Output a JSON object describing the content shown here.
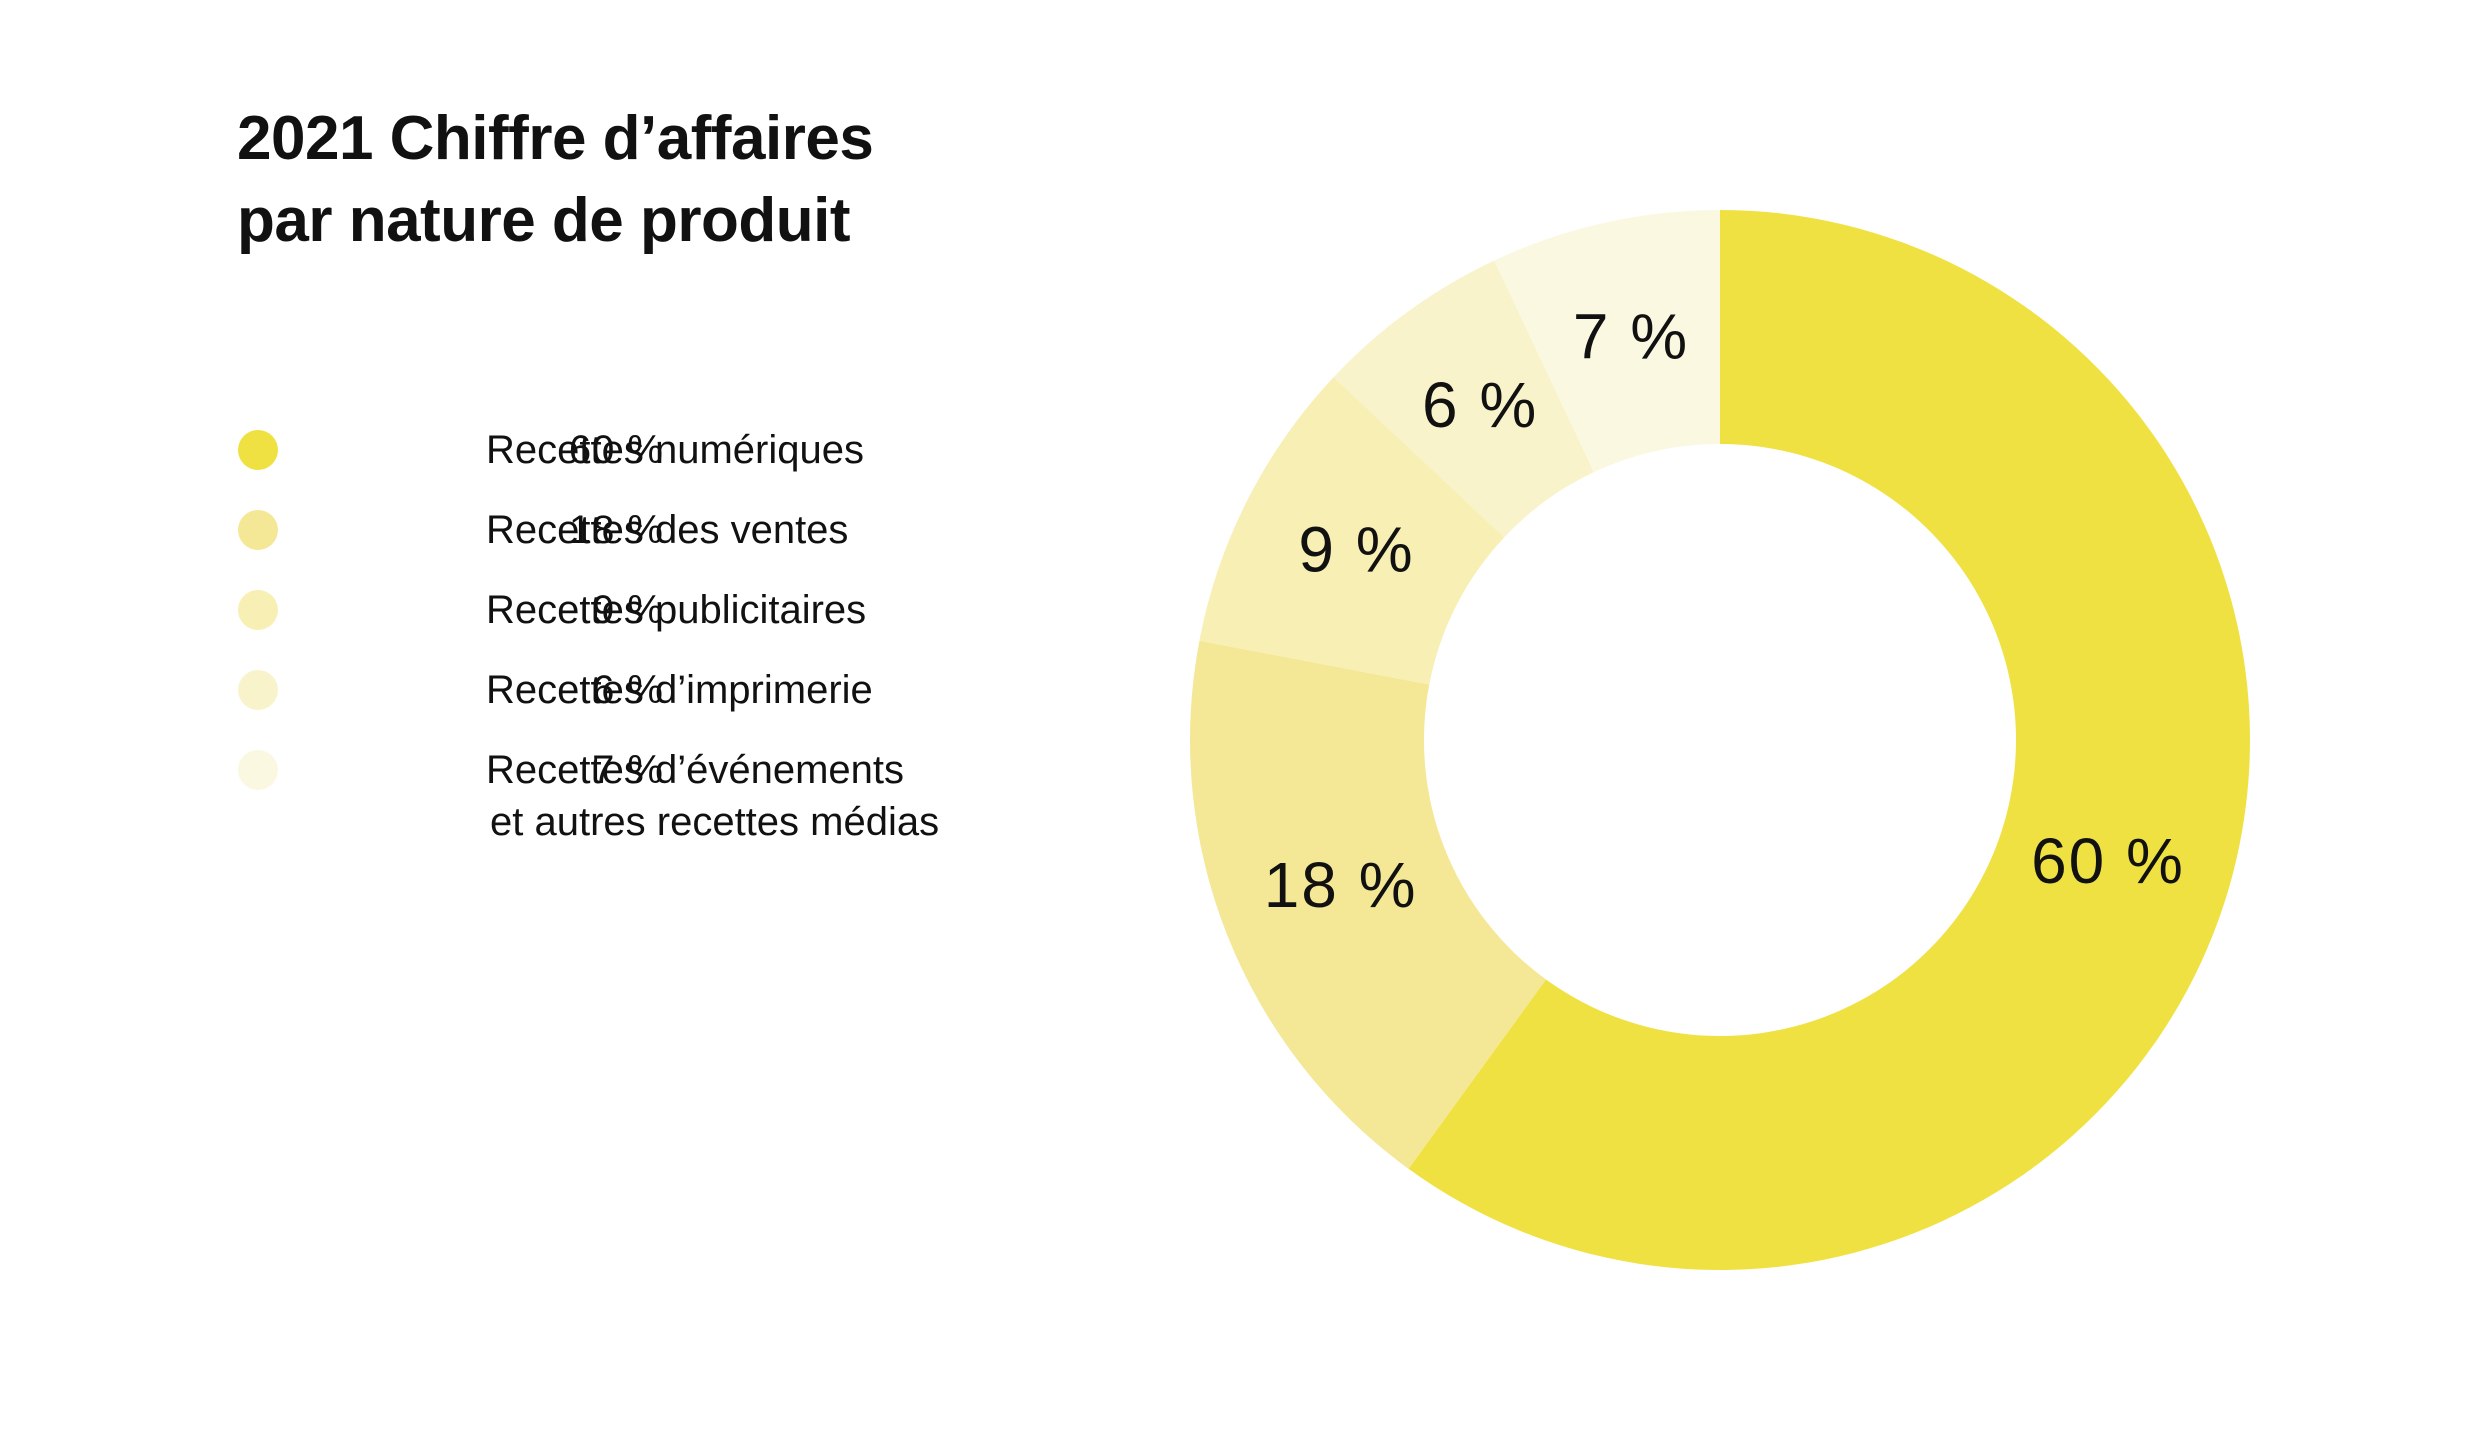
{
  "title": {
    "line1": "2021 Chiffre d’affaires",
    "line2": "par nature de produit"
  },
  "chart_data": {
    "type": "pie",
    "donut": true,
    "start": "top, clockwise",
    "categories": [
      "Recettes numériques",
      "Recettes des ventes",
      "Recettes publicitaires",
      "Recettes d’imprimerie",
      "Recettes d’événements et autres recettes médias"
    ],
    "values": [
      60,
      18,
      9,
      6,
      7
    ],
    "value_labels": [
      "60 %",
      "18 %",
      "9 %",
      "6 %",
      "7 %"
    ],
    "colors": [
      "#f0e143",
      "#f4e896",
      "#f7efb4",
      "#f9f3cb",
      "#fbf8e2"
    ],
    "legend": {
      "placement": "left",
      "items": [
        {
          "pct": "60 %",
          "label_lines": [
            "Recettes numériques"
          ],
          "color": "#f0e143"
        },
        {
          "pct": "18 %",
          "label_lines": [
            "Recettes des ventes"
          ],
          "color": "#f4e896"
        },
        {
          "pct": "9 %",
          "label_lines": [
            "Recettes publicitaires"
          ],
          "color": "#f7efb4"
        },
        {
          "pct": "6 %",
          "label_lines": [
            "Recettes d’imprimerie"
          ],
          "color": "#f9f3cb"
        },
        {
          "pct": "7 %",
          "label_lines": [
            "Recettes d’événements",
            "et autres recettes médias"
          ],
          "color": "#fbf8e2"
        }
      ]
    }
  }
}
